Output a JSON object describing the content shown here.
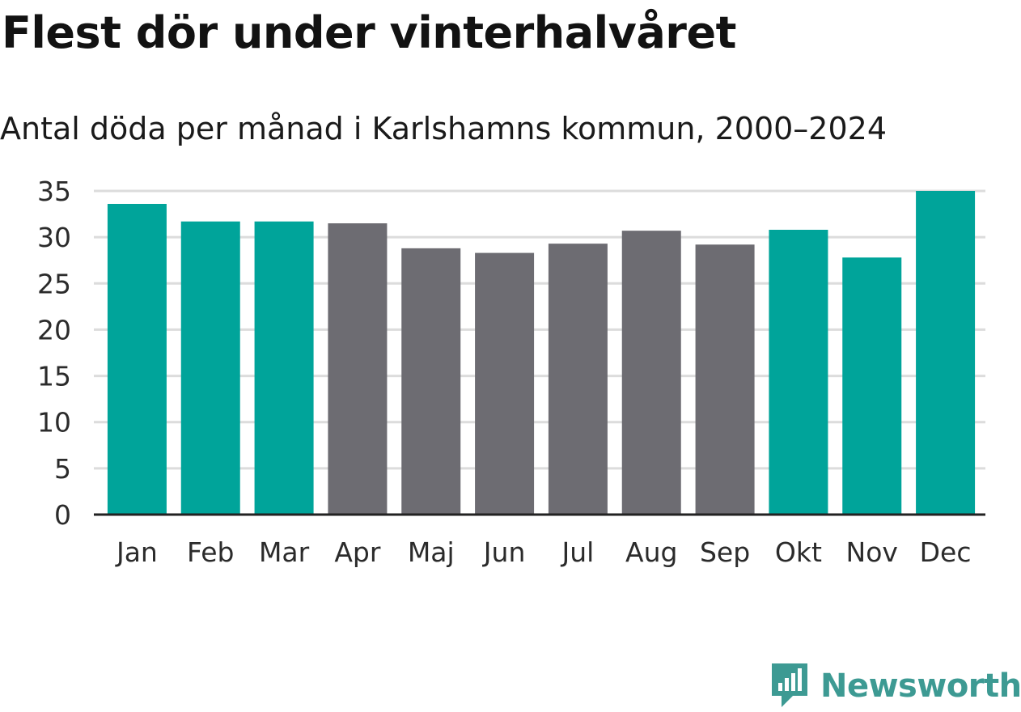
{
  "title": "Flest dör under vinterhalvåret",
  "subtitle": "Antal döda per månad i Karlshamns kommun, 2000–2024",
  "brand": {
    "name": "Newsworthy",
    "icon": "newsworthy-logo-icon",
    "color": "#3d9a93"
  },
  "colors": {
    "winter": "#00a49a",
    "summer": "#6d6c72",
    "grid": "#dcdcdc",
    "axis": "#222222"
  },
  "chart_data": {
    "type": "bar",
    "title": "Flest dör under vinterhalvåret",
    "subtitle": "Antal döda per månad i Karlshamns kommun, 2000–2024",
    "xlabel": "",
    "ylabel": "",
    "categories": [
      "Jan",
      "Feb",
      "Mar",
      "Apr",
      "Maj",
      "Jun",
      "Jul",
      "Aug",
      "Sep",
      "Okt",
      "Nov",
      "Dec"
    ],
    "values": [
      33.6,
      31.7,
      31.7,
      31.5,
      28.8,
      28.3,
      29.3,
      30.7,
      29.2,
      30.8,
      27.8,
      35.0
    ],
    "winter_months": [
      true,
      true,
      true,
      false,
      false,
      false,
      false,
      false,
      false,
      true,
      true,
      true
    ],
    "ylim": [
      0,
      35
    ],
    "yticks": [
      "0",
      "5",
      "10",
      "15",
      "20",
      "25",
      "30",
      "35"
    ],
    "grid": true,
    "legend": "none"
  }
}
